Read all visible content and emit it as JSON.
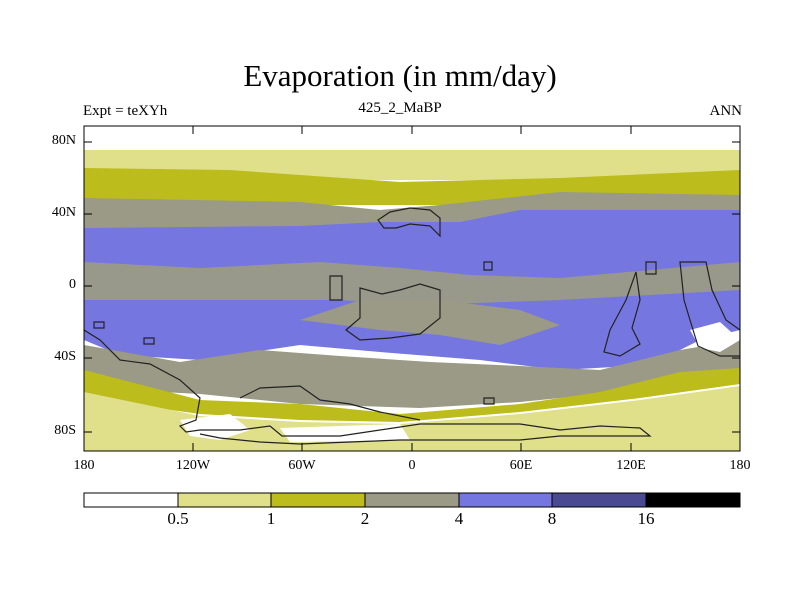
{
  "title": "Evaporation (in mm/day)",
  "subtitle_left": "Expt = teXYh",
  "subtitle_center": "425_2_MaBP",
  "subtitle_right": "ANN",
  "y_ticks": [
    "80N",
    "40N",
    "0",
    "40S",
    "80S"
  ],
  "x_ticks": [
    "180",
    "120W",
    "60W",
    "0",
    "60E",
    "120E",
    "180"
  ],
  "colorbar": {
    "colors": [
      "#ffffff",
      "#e0e08a",
      "#bcbc1c",
      "#9a9a86",
      "#7676e0",
      "#4a4a92",
      "#000000"
    ],
    "labels": [
      "0.5",
      "1",
      "2",
      "4",
      "8",
      "16"
    ]
  }
}
